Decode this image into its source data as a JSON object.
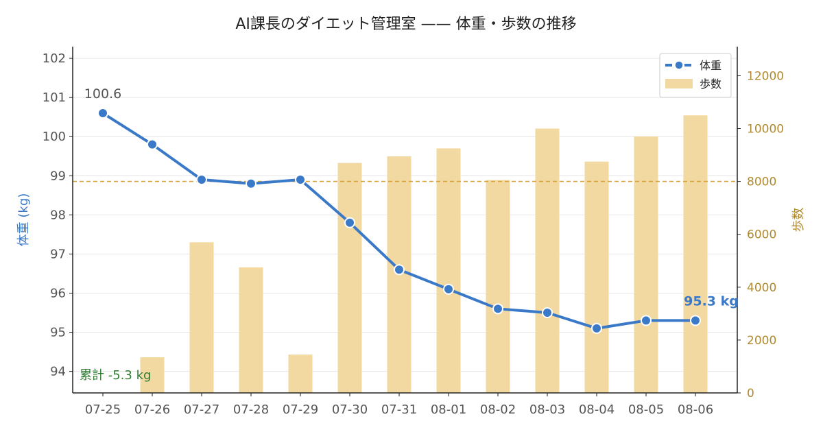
{
  "chart_data": {
    "type": "bar+line",
    "title": "AI課長のダイエット管理室 —— 体重・歩数の推移",
    "x": [
      "07-25",
      "07-26",
      "07-27",
      "07-28",
      "07-29",
      "07-30",
      "07-31",
      "08-01",
      "08-02",
      "08-03",
      "08-04",
      "08-05",
      "08-06"
    ],
    "series": [
      {
        "name": "体重",
        "type": "line",
        "axis": "left",
        "values": [
          100.6,
          99.8,
          98.9,
          98.8,
          98.9,
          97.8,
          96.6,
          96.1,
          95.6,
          95.5,
          95.1,
          95.3,
          95.3
        ]
      },
      {
        "name": "歩数",
        "type": "bar",
        "axis": "right",
        "values": [
          null,
          1350,
          5700,
          4750,
          1450,
          8700,
          8950,
          9250,
          8050,
          10000,
          8750,
          9700,
          10500
        ]
      }
    ],
    "y_left": {
      "label": "体重 (kg)",
      "ylim": [
        93.45,
        102.3
      ],
      "ticks": [
        94,
        95,
        96,
        97,
        98,
        99,
        100,
        101,
        102
      ]
    },
    "y_right": {
      "label": "歩数",
      "ylim": [
        0,
        13100
      ],
      "ticks": [
        0,
        2000,
        4000,
        6000,
        8000,
        10000,
        12000
      ]
    },
    "reference_line": {
      "axis": "right",
      "value": 8000
    },
    "annotations": {
      "first": "100.6",
      "last": "95.3 kg",
      "cumulative": "累計 -5.3 kg"
    },
    "legend": {
      "position": "top-right",
      "entries": [
        "体重",
        "歩数"
      ]
    },
    "grid": "horizontal",
    "colors": {
      "weight": "#3a78c8",
      "steps": "#f2d9a2",
      "reference": "#d9a23a",
      "right_axis": "#b08a2e",
      "left_label": "#3a78c8",
      "cumulative": "#2e7d32"
    }
  }
}
